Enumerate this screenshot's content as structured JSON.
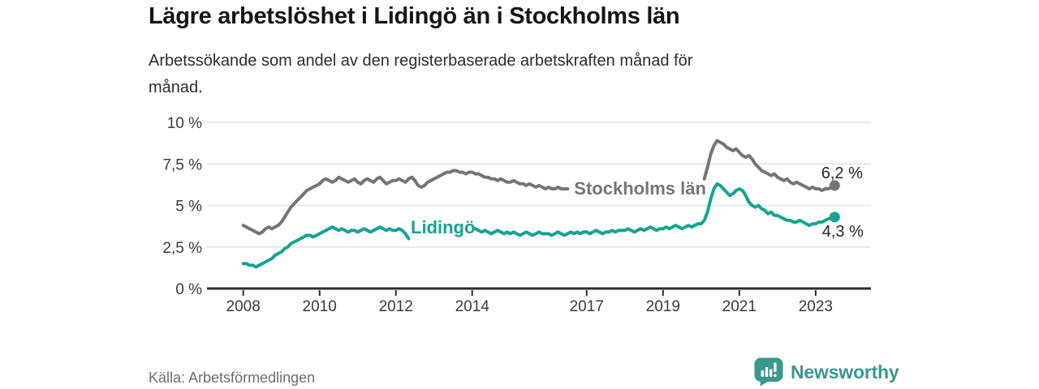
{
  "footer": {
    "brand": "Newsworthy"
  },
  "colors": {
    "background": "#ffffff",
    "title": "#151515",
    "subtitle": "#2d2d2d",
    "axis": "#2d2d2d",
    "gridline": "#e2e2e2",
    "tick_label": "#3b3b3b",
    "stockholm_gray": "#757575",
    "lidingo_teal": "#17a392",
    "end_label_text": "#272727",
    "logo_teal": "#3a988f",
    "source_text": "#6f6f6f"
  },
  "chart_data": {
    "type": "line",
    "title": "Lägre arbetslöshet i Lidingö än i Stockholms län",
    "subtitle_lines": [
      "Arbetssökande som andel av den registerbaserade arbetskraften månad för",
      "månad."
    ],
    "source": "Källa: Arbetsförmedlingen",
    "unit": "%",
    "frequency": "monthly",
    "x_start": "2008-01",
    "x_end": "2023-07",
    "xlim": [
      2007.05,
      2024.45
    ],
    "ylim": [
      0,
      10
    ],
    "grid": "horizontal-only",
    "legend": "inline-labels",
    "y_ticks": [
      {
        "v": 0,
        "label": "0 %"
      },
      {
        "v": 2.5,
        "label": "2,5 %"
      },
      {
        "v": 5,
        "label": "5 %"
      },
      {
        "v": 7.5,
        "label": "7,5 %"
      },
      {
        "v": 10,
        "label": "10 %"
      }
    ],
    "x_ticks": [
      {
        "v": 2008,
        "label": "2008"
      },
      {
        "v": 2010,
        "label": "2010"
      },
      {
        "v": 2012,
        "label": "2012"
      },
      {
        "v": 2014,
        "label": "2014"
      },
      {
        "v": 2017,
        "label": "2017"
      },
      {
        "v": 2019,
        "label": "2019"
      },
      {
        "v": 2021,
        "label": "2021"
      },
      {
        "v": 2023,
        "label": "2023"
      }
    ],
    "series": [
      {
        "name": "Stockholms län",
        "color": "#757575",
        "last_value": 6.2,
        "end_label": {
          "text": "6,2 %",
          "dx": 9,
          "dy": -9
        },
        "line_label": {
          "text": "Stockholms län",
          "x": 2016.67,
          "y": 6.05
        },
        "values": [
          3.8,
          3.7,
          3.6,
          3.5,
          3.4,
          3.3,
          3.4,
          3.6,
          3.7,
          3.6,
          3.7,
          3.8,
          4.0,
          4.3,
          4.6,
          4.9,
          5.1,
          5.3,
          5.5,
          5.7,
          5.9,
          6.0,
          6.1,
          6.2,
          6.3,
          6.5,
          6.6,
          6.5,
          6.4,
          6.5,
          6.7,
          6.6,
          6.5,
          6.4,
          6.5,
          6.6,
          6.4,
          6.3,
          6.5,
          6.6,
          6.5,
          6.4,
          6.6,
          6.7,
          6.5,
          6.3,
          6.4,
          6.5,
          6.5,
          6.6,
          6.5,
          6.4,
          6.6,
          6.7,
          6.5,
          6.2,
          6.1,
          6.2,
          6.4,
          6.5,
          6.6,
          6.7,
          6.8,
          6.9,
          7.0,
          7.0,
          7.1,
          7.1,
          7.0,
          7.0,
          6.9,
          7.0,
          7.0,
          6.9,
          6.9,
          6.8,
          6.7,
          6.7,
          6.6,
          6.6,
          6.5,
          6.6,
          6.5,
          6.4,
          6.4,
          6.5,
          6.4,
          6.3,
          6.3,
          6.2,
          6.3,
          6.2,
          6.1,
          6.2,
          6.1,
          6.0,
          6.1,
          6.0,
          6.0,
          6.1,
          6.0,
          6.0,
          6.0,
          null,
          null,
          null,
          null,
          null,
          null,
          null,
          null,
          null,
          null,
          null,
          null,
          null,
          null,
          null,
          null,
          null,
          null,
          null,
          null,
          null,
          null,
          null,
          null,
          null,
          null,
          null,
          null,
          null,
          null,
          null,
          null,
          null,
          null,
          null,
          null,
          null,
          null,
          null,
          null,
          null,
          null,
          6.6,
          7.3,
          8.1,
          8.6,
          8.9,
          8.8,
          8.7,
          8.5,
          8.4,
          8.3,
          8.4,
          8.2,
          8.0,
          7.9,
          8.0,
          7.8,
          7.5,
          7.3,
          7.1,
          7.0,
          6.9,
          6.8,
          6.9,
          6.7,
          6.6,
          6.5,
          6.6,
          6.4,
          6.3,
          6.4,
          6.3,
          6.2,
          6.1,
          6.0,
          6.1,
          6.0,
          6.0,
          5.9,
          6.0,
          6.0,
          6.1,
          6.2
        ]
      },
      {
        "name": "Lidingö",
        "color": "#17a392",
        "last_value": 4.3,
        "end_label": {
          "text": "4,3 %",
          "dx": 10,
          "dy": 24
        },
        "line_label": {
          "text": "Lidingö",
          "x": 2012.39,
          "y": 3.7
        },
        "values": [
          1.5,
          1.5,
          1.4,
          1.4,
          1.3,
          1.4,
          1.5,
          1.6,
          1.7,
          1.8,
          2.0,
          2.1,
          2.2,
          2.4,
          2.5,
          2.7,
          2.8,
          2.9,
          3.0,
          3.1,
          3.2,
          3.2,
          3.1,
          3.2,
          3.3,
          3.4,
          3.5,
          3.6,
          3.7,
          3.6,
          3.5,
          3.6,
          3.5,
          3.4,
          3.5,
          3.5,
          3.4,
          3.5,
          3.6,
          3.5,
          3.4,
          3.5,
          3.6,
          3.7,
          3.6,
          3.5,
          3.6,
          3.5,
          3.5,
          3.6,
          3.5,
          3.3,
          3.0,
          null,
          null,
          null,
          null,
          null,
          null,
          null,
          null,
          null,
          null,
          null,
          null,
          null,
          null,
          null,
          null,
          null,
          null,
          null,
          null,
          3.6,
          3.5,
          3.4,
          3.5,
          3.4,
          3.3,
          3.4,
          3.5,
          3.4,
          3.3,
          3.4,
          3.3,
          3.4,
          3.3,
          3.2,
          3.3,
          3.4,
          3.3,
          3.2,
          3.3,
          3.4,
          3.3,
          3.3,
          3.3,
          3.2,
          3.3,
          3.4,
          3.3,
          3.2,
          3.3,
          3.4,
          3.3,
          3.4,
          3.3,
          3.4,
          3.4,
          3.3,
          3.4,
          3.5,
          3.4,
          3.3,
          3.4,
          3.4,
          3.5,
          3.4,
          3.5,
          3.5,
          3.5,
          3.6,
          3.5,
          3.4,
          3.5,
          3.6,
          3.5,
          3.6,
          3.7,
          3.6,
          3.5,
          3.6,
          3.6,
          3.7,
          3.6,
          3.7,
          3.8,
          3.7,
          3.6,
          3.7,
          3.8,
          3.7,
          3.8,
          3.9,
          3.9,
          4.1,
          4.6,
          5.4,
          6.0,
          6.3,
          6.2,
          6.0,
          5.8,
          5.6,
          5.7,
          5.9,
          6.0,
          5.9,
          5.6,
          5.2,
          5.0,
          4.9,
          5.0,
          4.8,
          4.7,
          4.5,
          4.6,
          4.4,
          4.4,
          4.3,
          4.2,
          4.1,
          4.1,
          4.0,
          4.0,
          4.1,
          4.0,
          3.9,
          3.8,
          3.9,
          3.9,
          4.0,
          4.0,
          4.1,
          4.2,
          4.2,
          4.3
        ]
      }
    ]
  }
}
